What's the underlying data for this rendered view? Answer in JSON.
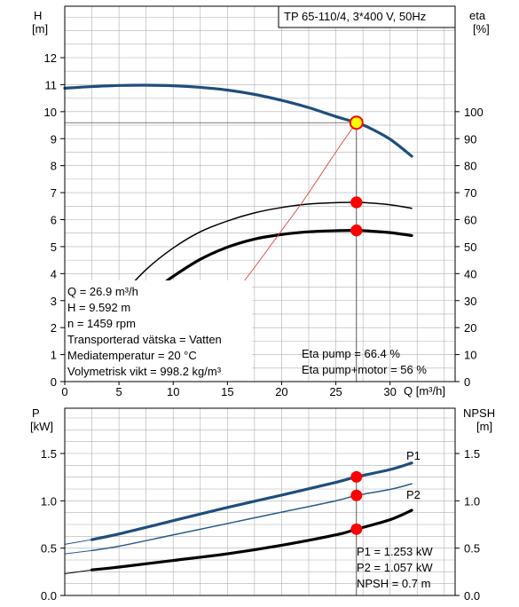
{
  "title": "TP 65-110/4, 3*400 V, 50Hz",
  "colors": {
    "head_curve": "#1f4e7c",
    "p1_curve": "#1f4e7c",
    "p2_curve": "#2a5a8c",
    "eta_curves": "#000000",
    "npsh_curve": "#000000",
    "system_curve": "#e04040",
    "operating_point": "#ff0000",
    "operating_point_head_fill": "#ffff00",
    "grid": "#b0b0b0",
    "label_blue": "#1f4e7c"
  },
  "chart_data": [
    {
      "type": "line",
      "name": "upper",
      "xlabel": "Q [m³/h]",
      "ylabel": "H\n[m]",
      "ylabel_right": "eta\n[%]",
      "xlim": [
        0,
        36
      ],
      "ylim": [
        0,
        13
      ],
      "ylim_right": [
        0,
        130
      ],
      "xticks": [
        "0",
        "5",
        "10",
        "15",
        "20",
        "25",
        "30"
      ],
      "yticks": [
        "0",
        "1",
        "2",
        "3",
        "4",
        "5",
        "6",
        "7",
        "8",
        "9",
        "10",
        "11",
        "12"
      ],
      "yticks_right": [
        "0",
        "10",
        "20",
        "30",
        "40",
        "50",
        "60",
        "70",
        "80",
        "90",
        "100"
      ],
      "grid": true,
      "series": [
        {
          "kind": "head",
          "x": [
            0,
            2.5,
            5,
            7.5,
            10,
            12.5,
            15,
            17.5,
            20,
            22.5,
            25,
            26.9,
            28,
            30,
            32
          ],
          "y": [
            10.87,
            10.93,
            10.97,
            10.98,
            10.96,
            10.9,
            10.8,
            10.64,
            10.42,
            10.15,
            9.82,
            9.592,
            9.42,
            8.98,
            8.35
          ]
        },
        {
          "kind": "head-extension",
          "x": [
            0,
            2.5
          ],
          "y": [
            10.87,
            10.93
          ]
        },
        {
          "kind": "eta-pump",
          "x": [
            5,
            7.5,
            10,
            12.5,
            15,
            17.5,
            20,
            22.5,
            25,
            26.9,
            28,
            30,
            32
          ],
          "y": [
            31,
            41.5,
            49.5,
            55.5,
            59.5,
            62.5,
            64.5,
            65.8,
            66.3,
            66.4,
            66.2,
            65.5,
            64.2
          ]
        },
        {
          "kind": "eta-pump-motor",
          "x": [
            9,
            10,
            12.5,
            15,
            17.5,
            20,
            22.5,
            25,
            26.9,
            28,
            30,
            32
          ],
          "y": [
            36,
            39,
            45.3,
            49.8,
            52.8,
            54.5,
            55.5,
            55.9,
            56,
            55.8,
            55.2,
            54.1
          ]
        },
        {
          "kind": "system",
          "x": [
            16.5,
            18,
            20,
            22,
            24,
            25.5,
            26.9
          ],
          "y": [
            3.7,
            4.5,
            5.6,
            6.7,
            7.9,
            8.8,
            9.592
          ]
        }
      ],
      "operating_points": [
        {
          "x": 26.9,
          "y": 9.592,
          "axis": "left",
          "highlight": true
        },
        {
          "x": 26.9,
          "y": 66.4,
          "axis": "right"
        },
        {
          "x": 26.9,
          "y": 56,
          "axis": "right"
        }
      ],
      "info": [
        "Q = 26.9 m³/h",
        "H = 9.592 m",
        "n = 1459 rpm",
        "Transporterad vätska = Vatten",
        "Mediatemperatur = 20 °C",
        "Volymetrisk vikt = 998.2 kg/m³"
      ],
      "info_right": [
        "Eta pump = 66.4 %",
        "Eta pump+motor = 56 %"
      ]
    },
    {
      "type": "line",
      "name": "lower",
      "ylabel": "P\n[kW]",
      "ylabel_right": "NPSH\n[m]",
      "xlim": [
        0,
        36
      ],
      "ylim": [
        0,
        2
      ],
      "ylim_right": [
        0,
        2
      ],
      "yticks": [
        "0.0",
        "0.5",
        "1.0",
        "1.5"
      ],
      "yticks_right": [
        "0.0",
        "0.5",
        "1.0",
        "1.5"
      ],
      "grid": true,
      "series": [
        {
          "name": "P1",
          "kind": "p1",
          "x": [
            0,
            2.5,
            5,
            10,
            15,
            20,
            25,
            26.9,
            30,
            32
          ],
          "y": [
            0.54,
            0.59,
            0.65,
            0.79,
            0.93,
            1.06,
            1.195,
            1.253,
            1.33,
            1.4
          ]
        },
        {
          "name": "P2",
          "kind": "p2",
          "x": [
            0,
            2.5,
            5,
            10,
            15,
            20,
            25,
            26.9,
            30,
            32
          ],
          "y": [
            0.44,
            0.475,
            0.52,
            0.64,
            0.76,
            0.88,
            1.0,
            1.057,
            1.12,
            1.18
          ]
        },
        {
          "kind": "npsh",
          "x": [
            0,
            2.5,
            5,
            10,
            15,
            20,
            25,
            26.9,
            30,
            32
          ],
          "y": [
            0.23,
            0.27,
            0.3,
            0.37,
            0.44,
            0.53,
            0.64,
            0.7,
            0.8,
            0.9
          ]
        }
      ],
      "operating_points": [
        {
          "x": 26.9,
          "y": 1.253
        },
        {
          "x": 26.9,
          "y": 1.057
        },
        {
          "x": 26.9,
          "y": 0.7
        }
      ],
      "info_right": [
        "P1 = 1.253 kW",
        "P2 = 1.057 kW",
        "NPSH = 0.7 m"
      ]
    }
  ]
}
